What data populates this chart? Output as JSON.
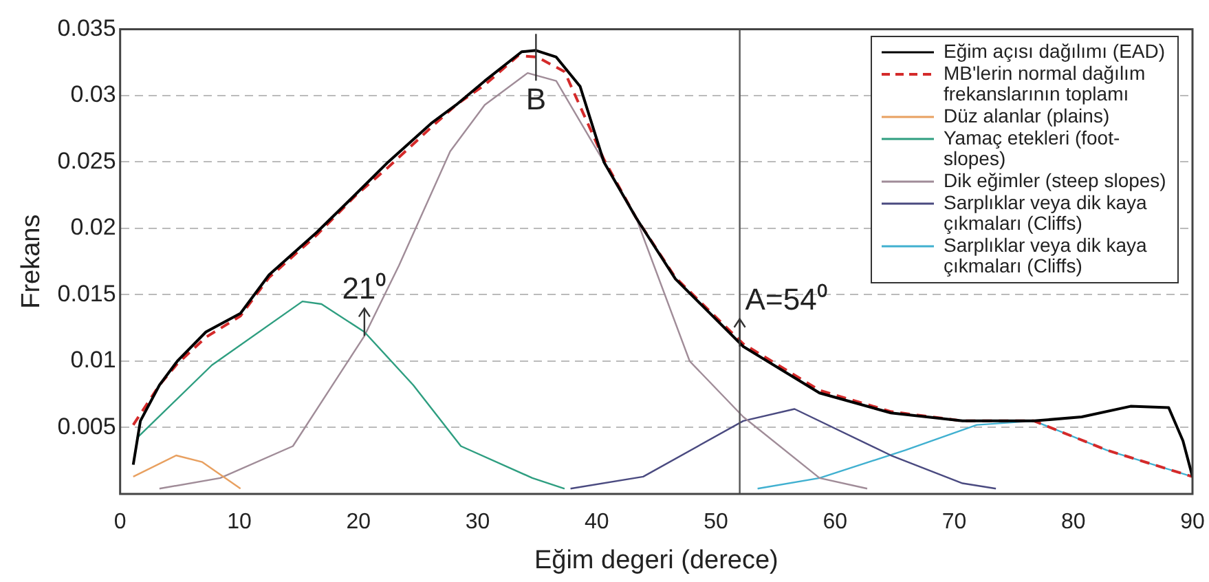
{
  "chart_data": {
    "type": "line",
    "xlabel": "Eğim degeri (derece)",
    "ylabel": "Frekans",
    "xlim": [
      0,
      90
    ],
    "xticks": [
      0,
      10,
      20,
      30,
      40,
      50,
      60,
      70,
      80,
      90
    ],
    "ylim": [
      0,
      0.035
    ],
    "yticks": [
      0.005,
      0.01,
      0.015,
      0.02,
      0.025,
      0.03,
      0.035
    ],
    "grid": "y",
    "legend": "top right",
    "marker": "none",
    "series": [
      {
        "name": "Eğim açısı dağılımı (EAD)",
        "color": "#000000",
        "x": [
          1.1,
          1.7,
          3.3,
          4.8,
          7.2,
          10.1,
          12.5,
          16.5,
          19.8,
          22.5,
          26.1,
          28.2,
          30.6,
          33.7,
          34.9,
          36.6,
          38.6,
          40.6,
          43.3,
          46.6,
          52.3,
          58.7,
          64.7,
          70.7,
          76.7,
          80.7,
          84.8,
          88,
          89.2,
          90
        ],
        "values": [
          0.0022,
          0.0055,
          0.0082,
          0.01,
          0.0122,
          0.0136,
          0.0165,
          0.0197,
          0.0226,
          0.025,
          0.0279,
          0.0293,
          0.0311,
          0.0333,
          0.0334,
          0.0329,
          0.0307,
          0.025,
          0.0208,
          0.0162,
          0.0111,
          0.0076,
          0.0061,
          0.0055,
          0.0055,
          0.0058,
          0.0066,
          0.0065,
          0.004,
          0.0013
        ]
      },
      {
        "name": "MB'lerin normal dağılım frekanslarının toplamı",
        "color": "#d42a2a",
        "line_style": "dashed",
        "x": [
          1.1,
          3.3,
          4.8,
          7.2,
          10.1,
          12.5,
          16.5,
          19.8,
          22.5,
          26.1,
          28.2,
          30.6,
          33.4,
          35,
          37.3,
          40.6,
          43.3,
          46.6,
          52.3,
          58.7,
          64.7,
          70.7,
          76.7,
          82.8,
          90
        ],
        "values": [
          0.0052,
          0.0082,
          0.0098,
          0.0118,
          0.0134,
          0.0163,
          0.0195,
          0.0225,
          0.0246,
          0.0276,
          0.0293,
          0.0308,
          0.033,
          0.0329,
          0.0318,
          0.0252,
          0.0208,
          0.0163,
          0.0113,
          0.0078,
          0.0062,
          0.0055,
          0.0055,
          0.0033,
          0.0013
        ]
      },
      {
        "name": "Düz alanlar (plains)",
        "color": "#e8a060",
        "x": [
          1.1,
          4.7,
          6.9,
          10.1
        ],
        "values": [
          0.0013,
          0.0029,
          0.0024,
          0.0004
        ]
      },
      {
        "name": "Yamaç etekleri (foot-slopes)",
        "color": "#2e9e80",
        "x": [
          1.4,
          7.7,
          15.3,
          16.9,
          20.5,
          24.6,
          28.6,
          34.6,
          37.3
        ],
        "values": [
          0.0042,
          0.0097,
          0.0145,
          0.0143,
          0.0122,
          0.0082,
          0.0036,
          0.0012,
          0.0004
        ]
      },
      {
        "name": "Dik eğimler (steep slopes)",
        "color": "#a08c98",
        "x": [
          3.3,
          8.4,
          14.5,
          20.5,
          23.4,
          27.7,
          30.6,
          34.2,
          36.6,
          40.6,
          43.3,
          47.8,
          52.3,
          58.7,
          62.7
        ],
        "values": [
          0.0004,
          0.0012,
          0.0036,
          0.0119,
          0.0172,
          0.0258,
          0.0293,
          0.0317,
          0.0311,
          0.025,
          0.0208,
          0.01,
          0.0058,
          0.0012,
          0.0004
        ]
      },
      {
        "name": "Sarplıklar veya dik kaya çıkmaları (Cliffs)",
        "color": "#4a4a80",
        "x": [
          37.8,
          43.9,
          52.3,
          56.6,
          64.7,
          70.7,
          73.5
        ],
        "values": [
          0.0004,
          0.0013,
          0.0055,
          0.0064,
          0.0029,
          0.0008,
          0.0004
        ]
      },
      {
        "name": "Sarplıklar veya dik kaya çıkmaları (Cliffs)",
        "color": "#40b0d0",
        "x": [
          53.5,
          58.7,
          65.9,
          71.9,
          76.7,
          82.8,
          90
        ],
        "values": [
          0.0004,
          0.0012,
          0.0033,
          0.0052,
          0.0055,
          0.0033,
          0.0013
        ]
      }
    ],
    "ref_lines": [
      {
        "axis": "x",
        "value": 52,
        "color": "#555555"
      }
    ],
    "annotations": [
      {
        "text": "21⁰",
        "x": 20.5,
        "y": 0.0119
      },
      {
        "text": "B",
        "x": 34.9,
        "y": 0.0334
      },
      {
        "text": "A=54⁰",
        "x": 52,
        "y": 0.0111
      }
    ]
  }
}
